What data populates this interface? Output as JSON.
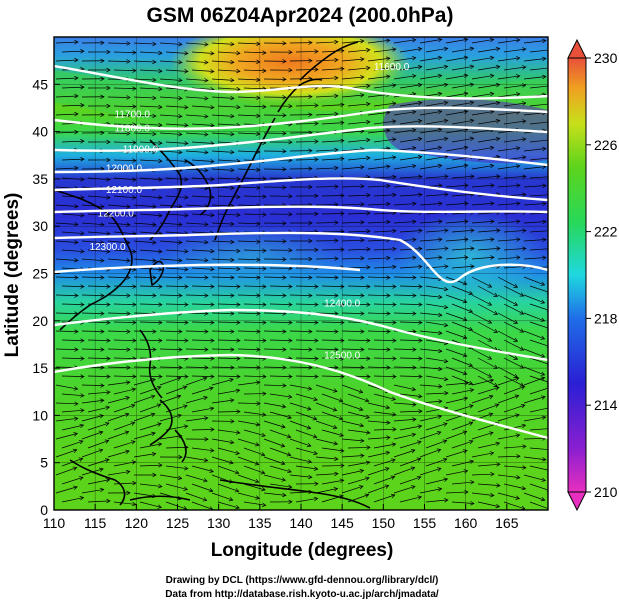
{
  "title": "GSM 06Z04Apr2024 (200.0hPa)",
  "xlabel": "Longitude (degrees)",
  "ylabel": "Latitude (degrees)",
  "credits": {
    "line1": "Drawing by DCL (https://www.gfd-dennou.org/library/dcl/)",
    "line2": "Data from http://database.rish.kyoto-u.ac.jp/arch/jmadata/"
  },
  "chart_data": {
    "type": "heatmap",
    "xlim": [
      110,
      170
    ],
    "ylim": [
      0,
      50
    ],
    "x_ticks": [
      110,
      115,
      120,
      125,
      130,
      135,
      140,
      145,
      150,
      155,
      160,
      165
    ],
    "y_ticks": [
      0,
      5,
      10,
      15,
      20,
      25,
      30,
      35,
      40,
      45
    ],
    "grid": true,
    "colorbar": {
      "range": [
        210,
        230
      ],
      "tick_values": [
        210,
        214,
        218,
        222,
        226,
        230
      ],
      "tick_labels": [
        "210",
        "214",
        "218",
        "222",
        "226",
        "230"
      ],
      "placement": "right"
    },
    "height_contours": [
      {
        "label": "11600.0",
        "label_lon": 151,
        "label_lat": 46.5
      },
      {
        "label": "11700.0",
        "label_lon": 119.5,
        "label_lat": 41.5
      },
      {
        "label": "11800.0",
        "label_lon": 119.5,
        "label_lat": 40.0
      },
      {
        "label": "11900.0",
        "label_lon": 120.5,
        "label_lat": 37.8
      },
      {
        "label": "12000.0",
        "label_lon": 118.5,
        "label_lat": 35.8
      },
      {
        "label": "12100.0",
        "label_lon": 118.5,
        "label_lat": 33.5
      },
      {
        "label": "12200.0",
        "label_lon": 117.5,
        "label_lat": 31.0
      },
      {
        "label": "12300.0",
        "label_lon": 116.5,
        "label_lat": 27.5
      },
      {
        "label": "12400.0",
        "label_lon": 145,
        "label_lat": 21.5
      },
      {
        "label": "12500.0",
        "label_lon": 145,
        "label_lat": 16.0
      }
    ],
    "field": "temperature (K) with 200hPa wind streamlines and geopotential height contours"
  }
}
